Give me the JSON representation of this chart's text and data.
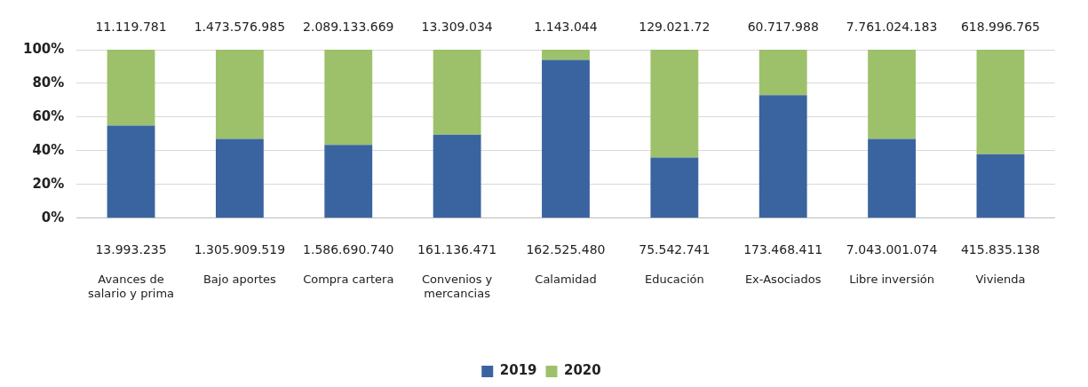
{
  "chart_data": {
    "type": "bar",
    "stacked": true,
    "categories": [
      "Avances de salario y prima",
      "Bajo aportes",
      "Compra cartera",
      "Convenios y mercancias",
      "Calamidad",
      "Educación",
      "Ex-Asociados",
      "Libre inversión",
      "Vivienda"
    ],
    "series": [
      {
        "name": "2019",
        "color": "#3a64a0",
        "values": [
          55,
          47,
          43.5,
          49.5,
          94,
          36,
          73,
          47,
          38
        ]
      },
      {
        "name": "2020",
        "color": "#9dc16a",
        "values": [
          45,
          53,
          56.5,
          50.5,
          6,
          64,
          27,
          53,
          62
        ]
      }
    ],
    "annotations": [
      {
        "text": "13.993.235",
        "x": "Avances de salario y prima",
        "y": 0
      },
      {
        "text": "1.305.909.519",
        "x": "Bajo aportes",
        "y": 0
      },
      {
        "text": "1.586.690.740",
        "x": "Compra cartera",
        "y": 0
      },
      {
        "text": "161.136.471",
        "x": "Convenios y mercancias",
        "y": 0
      },
      {
        "text": "162.525.480",
        "x": "Calamidad",
        "y": 0
      },
      {
        "text": "75.542.741",
        "x": "Educación",
        "y": 0
      },
      {
        "text": "173.468.411",
        "x": "Ex-Asociados",
        "y": 0
      },
      {
        "text": "7.043.001.074",
        "x": "Libre inversión",
        "y": 0
      },
      {
        "text": "415.835.138",
        "x": "Vivienda",
        "y": 0
      },
      {
        "text": "11.119.781",
        "x": "Avances de salario y prima",
        "y": 100
      },
      {
        "text": "1.473.576.985",
        "x": "Bajo aportes",
        "y": 100
      },
      {
        "text": "2.089.133.669",
        "x": "Compra cartera",
        "y": 100
      },
      {
        "text": "13.309.034",
        "x": "Convenios y mercancias",
        "y": 100
      },
      {
        "text": "1.143.044",
        "x": "Calamidad",
        "y": 100
      },
      {
        "text": "129.021.72",
        "x": "Educación",
        "y": 100
      },
      {
        "text": "60.717.988",
        "x": "Ex-Asociados",
        "y": 100
      },
      {
        "text": "7.761.024.183",
        "x": "Libre inversión",
        "y": 100
      },
      {
        "text": "618.996.765",
        "x": "Vivienda",
        "y": 100
      }
    ],
    "ylim": [
      0,
      100
    ],
    "yticks": [
      {
        "value": 0,
        "label": "0%"
      },
      {
        "value": 20,
        "label": "20%"
      },
      {
        "value": 40,
        "label": "40%"
      },
      {
        "value": 60,
        "label": "60%"
      },
      {
        "value": 80,
        "label": "80%"
      },
      {
        "value": 100,
        "label": "100%"
      }
    ],
    "grid": "y",
    "legend": "bottom"
  }
}
